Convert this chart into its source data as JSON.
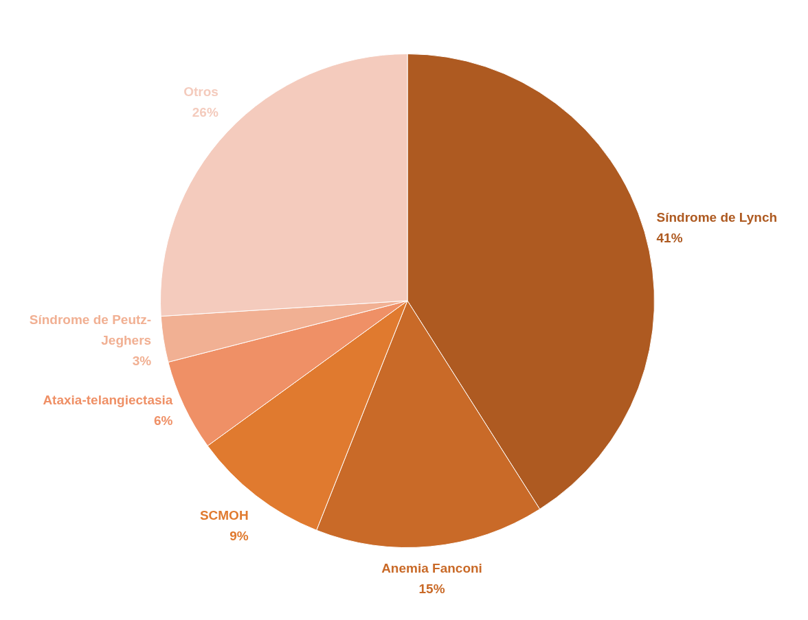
{
  "chart_data": {
    "type": "pie",
    "categories": [
      "Síndrome de Lynch",
      "Anemia Fanconi",
      "SCMOH",
      "Ataxia-telangiectasia",
      "Síndrome de Peutz-Jeghers",
      "Otros"
    ],
    "values": [
      41,
      15,
      9,
      6,
      3,
      26
    ],
    "colors": [
      "#ae5a21",
      "#c96a28",
      "#e07a2f",
      "#ef9066",
      "#f1b093",
      "#f4cbbd"
    ],
    "value_labels": [
      "41%",
      "15%",
      "9%",
      "6%",
      "3%",
      "26%"
    ],
    "legend": false
  }
}
